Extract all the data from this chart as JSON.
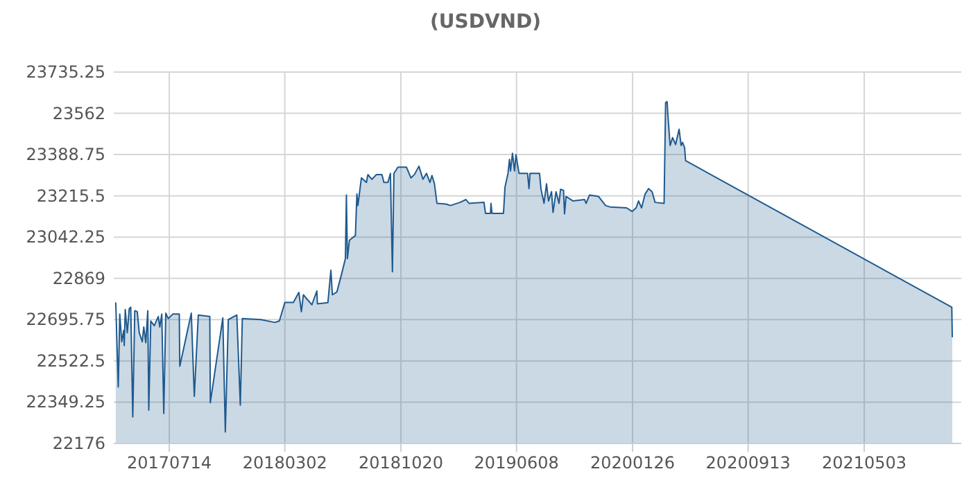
{
  "chart_data": {
    "type": "area",
    "title": "(USDVND)",
    "x": [
      "2017-03-29",
      "2017-04-03",
      "2017-04-06",
      "2017-04-10",
      "2017-04-14",
      "2017-04-15",
      "2017-04-17",
      "2017-04-21",
      "2017-04-25",
      "2017-04-28",
      "2017-05-02",
      "2017-05-06",
      "2017-05-11",
      "2017-05-15",
      "2017-05-21",
      "2017-05-24",
      "2017-05-28",
      "2017-06-01",
      "2017-06-03",
      "2017-06-07",
      "2017-06-14",
      "2017-06-22",
      "2017-06-25",
      "2017-06-29",
      "2017-07-03",
      "2017-07-07",
      "2017-07-12",
      "2017-07-21",
      "2017-08-03",
      "2017-08-04",
      "2017-08-27",
      "2017-09-02",
      "2017-09-10",
      "2017-10-03",
      "2017-10-04",
      "2017-10-29",
      "2017-11-03",
      "2017-11-09",
      "2017-11-26",
      "2017-12-03",
      "2017-12-07",
      "2018-01-13",
      "2018-02-10",
      "2018-02-19",
      "2018-03-02",
      "2018-03-19",
      "2018-03-30",
      "2018-04-04",
      "2018-04-08",
      "2018-04-25",
      "2018-05-05",
      "2018-05-06",
      "2018-05-27",
      "2018-06-02",
      "2018-06-05",
      "2018-06-14",
      "2018-06-23",
      "2018-07-01",
      "2018-07-03",
      "2018-07-05",
      "2018-07-09",
      "2018-07-21",
      "2018-07-24",
      "2018-07-26",
      "2018-08-02",
      "2018-08-12",
      "2018-08-15",
      "2018-08-23",
      "2018-09-01",
      "2018-09-12",
      "2018-09-16",
      "2018-09-24",
      "2018-09-29",
      "2018-10-03",
      "2018-10-06",
      "2018-10-14",
      "2018-10-31",
      "2018-11-09",
      "2018-11-16",
      "2018-11-25",
      "2018-12-03",
      "2018-12-10",
      "2018-12-17",
      "2018-12-21",
      "2018-12-26",
      "2018-12-31",
      "2019-01-18",
      "2019-01-27",
      "2019-02-15",
      "2019-02-27",
      "2019-03-05",
      "2019-04-04",
      "2019-04-07",
      "2019-04-17",
      "2019-04-18",
      "2019-04-20",
      "2019-05-13",
      "2019-05-16",
      "2019-05-22",
      "2019-05-25",
      "2019-05-27",
      "2019-05-31",
      "2019-06-04",
      "2019-06-07",
      "2019-06-13",
      "2019-06-30",
      "2019-07-03",
      "2019-07-05",
      "2019-07-24",
      "2019-07-27",
      "2019-08-02",
      "2019-08-07",
      "2019-08-11",
      "2019-08-17",
      "2019-08-20",
      "2019-08-26",
      "2019-09-01",
      "2019-09-04",
      "2019-09-10",
      "2019-09-12",
      "2019-09-15",
      "2019-09-29",
      "2019-10-22",
      "2019-10-25",
      "2019-11-01",
      "2019-11-19",
      "2019-12-03",
      "2019-12-12",
      "2020-01-14",
      "2020-01-25",
      "2020-02-02",
      "2020-02-07",
      "2020-02-13",
      "2020-02-20",
      "2020-02-27",
      "2020-03-05",
      "2020-03-11",
      "2020-03-29",
      "2020-04-01",
      "2020-04-04",
      "2020-04-06",
      "2020-04-10",
      "2020-04-15",
      "2020-04-21",
      "2020-04-28",
      "2020-05-02",
      "2020-05-05",
      "2020-05-09",
      "2020-05-11",
      "2021-10-25",
      "2021-10-26"
    ],
    "series": [
      {
        "color": "#1f5a8f",
        "values": [
          22768,
          22413,
          22719,
          22603,
          22651,
          22587,
          22738,
          22641,
          22742,
          22748,
          22287,
          22733,
          22729,
          22641,
          22603,
          22665,
          22599,
          22733,
          22316,
          22690,
          22670,
          22709,
          22665,
          22719,
          22302,
          22723,
          22700,
          22719,
          22719,
          22500,
          22723,
          22374,
          22715,
          22709,
          22347,
          22703,
          22224,
          22696,
          22715,
          22337,
          22700,
          22696,
          22684,
          22690,
          22768,
          22768,
          22810,
          22729,
          22800,
          22758,
          22816,
          22762,
          22767,
          22903,
          22800,
          22812,
          22884,
          22952,
          23219,
          22952,
          23029,
          23049,
          23223,
          23175,
          23291,
          23272,
          23305,
          23285,
          23305,
          23305,
          23272,
          23272,
          23310,
          22897,
          23310,
          23336,
          23336,
          23291,
          23305,
          23340,
          23285,
          23310,
          23272,
          23301,
          23266,
          23184,
          23181,
          23175,
          23188,
          23200,
          23184,
          23188,
          23142,
          23142,
          23184,
          23142,
          23142,
          23252,
          23310,
          23369,
          23320,
          23394,
          23320,
          23388,
          23310,
          23310,
          23246,
          23310,
          23310,
          23243,
          23184,
          23266,
          23194,
          23233,
          23146,
          23233,
          23184,
          23243,
          23239,
          23140,
          23213,
          23194,
          23200,
          23184,
          23219,
          23213,
          23175,
          23169,
          23165,
          23150,
          23165,
          23194,
          23165,
          23223,
          23246,
          23233,
          23188,
          23184,
          23607,
          23611,
          23543,
          23427,
          23460,
          23431,
          23495,
          23427,
          23440,
          23417,
          23363,
          22748,
          22622
        ]
      }
    ],
    "xlim": [
      "2017-03-25",
      "2021-11-13"
    ],
    "xticks": [
      {
        "value": "2017-07-14",
        "label": "20170714"
      },
      {
        "value": "2018-03-02",
        "label": "20180302"
      },
      {
        "value": "2018-10-20",
        "label": "20181020"
      },
      {
        "value": "2019-06-08",
        "label": "20190608"
      },
      {
        "value": "2020-01-26",
        "label": "20200126"
      },
      {
        "value": "2020-09-13",
        "label": "20200913"
      },
      {
        "value": "2021-05-03",
        "label": "20210503"
      }
    ],
    "ylim": [
      22176,
      23735.25
    ],
    "yticks": [
      22176,
      22349.25,
      22522.5,
      22695.75,
      22869,
      23042.25,
      23215.5,
      23388.75,
      23562,
      23735.25
    ],
    "grid": true
  }
}
